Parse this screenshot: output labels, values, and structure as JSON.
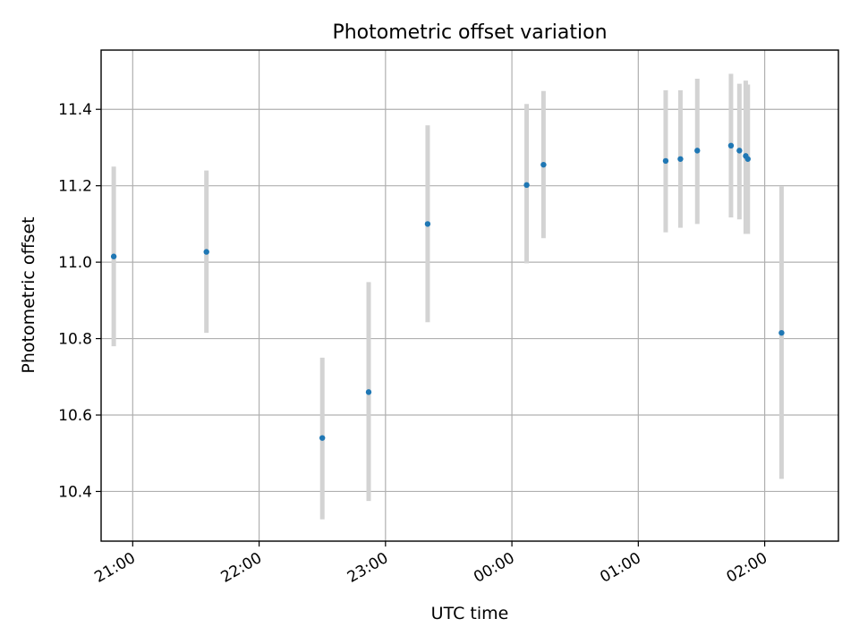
{
  "chart_data": {
    "type": "scatter",
    "title": "Photometric offset variation",
    "xlabel": "UTC time",
    "ylabel": "Photometric offset",
    "xlim": [
      "20:45",
      "02:35"
    ],
    "ylim": [
      10.27,
      11.555
    ],
    "grid": true,
    "xticks": [
      "21:00",
      "22:00",
      "23:00",
      "00:00",
      "01:00",
      "02:00"
    ],
    "yticks": [
      "10.4",
      "10.6",
      "10.8",
      "11.0",
      "11.2",
      "11.4"
    ],
    "series": [
      {
        "marker_color": "#1f77b4",
        "errorbar_color": "#d3d3d3",
        "points": [
          {
            "time": "20:51",
            "value": 11.015,
            "low": 10.78,
            "high": 11.25
          },
          {
            "time": "21:35",
            "value": 11.027,
            "low": 10.815,
            "high": 11.24
          },
          {
            "time": "22:30",
            "value": 10.54,
            "low": 10.327,
            "high": 10.75
          },
          {
            "time": "22:52",
            "value": 10.66,
            "low": 10.375,
            "high": 10.948
          },
          {
            "time": "23:20",
            "value": 11.1,
            "low": 10.843,
            "high": 11.358
          },
          {
            "time": "00:07",
            "value": 11.202,
            "low": 10.997,
            "high": 11.414
          },
          {
            "time": "00:15",
            "value": 11.255,
            "low": 11.063,
            "high": 11.448
          },
          {
            "time": "01:13",
            "value": 11.265,
            "low": 11.078,
            "high": 11.45
          },
          {
            "time": "01:20",
            "value": 11.27,
            "low": 11.09,
            "high": 11.45
          },
          {
            "time": "01:28",
            "value": 11.292,
            "low": 11.1,
            "high": 11.48
          },
          {
            "time": "01:44",
            "value": 11.305,
            "low": 11.117,
            "high": 11.493
          },
          {
            "time": "01:48",
            "value": 11.292,
            "low": 11.112,
            "high": 11.467
          },
          {
            "time": "01:51",
            "value": 11.278,
            "low": 11.074,
            "high": 11.475
          },
          {
            "time": "01:52",
            "value": 11.27,
            "low": 11.074,
            "high": 11.465
          },
          {
            "time": "02:08",
            "value": 10.815,
            "low": 10.433,
            "high": 11.198
          }
        ]
      }
    ]
  }
}
